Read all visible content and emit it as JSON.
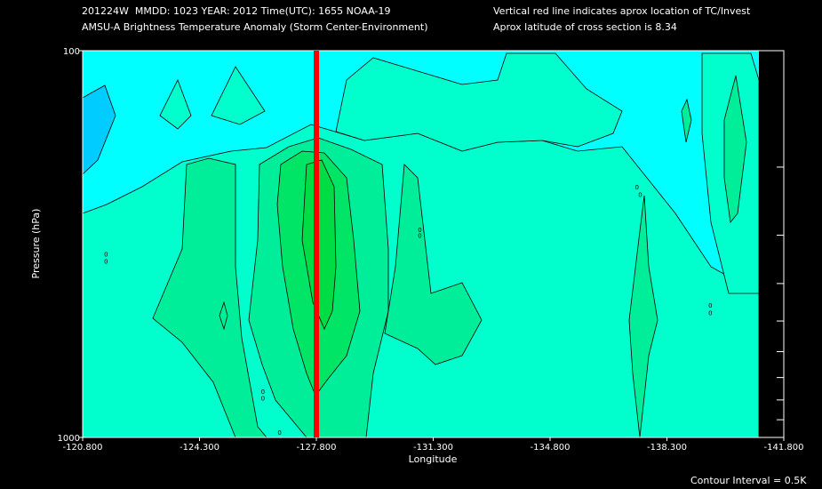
{
  "header": {
    "line1_left": "201224W  MMDD: 1023 YEAR: 2012 Time(UTC): 1655 NOAA-19",
    "line2_left": "AMSU-A Brightness Temperature Anomaly (Storm Center-Environment)",
    "line1_right": "Vertical red line indicates aprox location of TC/Invest",
    "line2_right": "Aprox latitude of cross section is 8.34"
  },
  "footer": {
    "contour_interval": "Contour Interval = 0.5K"
  },
  "colors": {
    "background": "#000000",
    "level_0": "#00ffff",
    "level_1": "#00ffcc",
    "level_2": "#00ee99",
    "level_3": "#00e566",
    "level_4": "#00dd44",
    "cold_1": "#00ccff",
    "marker": "#ff0000"
  },
  "chart_data": {
    "type": "heatmap",
    "title": "AMSU-A Brightness Temperature Anomaly (Storm Center-Environment)",
    "xlabel": "Longitude",
    "ylabel": "Pressure (hPa)",
    "x_ticks": [
      "-120.800",
      "-124.300",
      "-127.800",
      "-131.300",
      "-134.800",
      "-138.300",
      "-141.800"
    ],
    "x_tick_values": [
      -120.8,
      -124.3,
      -127.8,
      -131.3,
      -134.8,
      -138.3,
      -141.8
    ],
    "y_ticks": [
      "100",
      "1000"
    ],
    "y_tick_values": [
      100,
      1000
    ],
    "y_minor_ticks": [
      200,
      300,
      400,
      500,
      600,
      700,
      800,
      900
    ],
    "xlim": [
      -120.8,
      -141.8
    ],
    "ylim": [
      100,
      1000
    ],
    "y_scale": "log",
    "storm_longitude": -127.8,
    "contour_interval_K": 0.5,
    "data_extent_lon": [
      -120.8,
      -140.8
    ],
    "contour_labels": [
      {
        "text": "0",
        "lon": -126.2,
        "p": 760
      },
      {
        "text": "0",
        "lon": -126.2,
        "p": 790
      },
      {
        "text": "0",
        "lon": -126.7,
        "p": 970
      },
      {
        "text": "0",
        "lon": -130.9,
        "p": 290
      },
      {
        "text": "0",
        "lon": -130.9,
        "p": 300
      },
      {
        "text": "0",
        "lon": -137.4,
        "p": 225
      },
      {
        "text": "0",
        "lon": -137.5,
        "p": 235
      },
      {
        "text": "0",
        "lon": -139.6,
        "p": 455
      },
      {
        "text": "0",
        "lon": -139.6,
        "p": 475
      },
      {
        "text": "0",
        "lon": -121.5,
        "p": 335
      },
      {
        "text": "0",
        "lon": -121.5,
        "p": 350
      }
    ]
  }
}
